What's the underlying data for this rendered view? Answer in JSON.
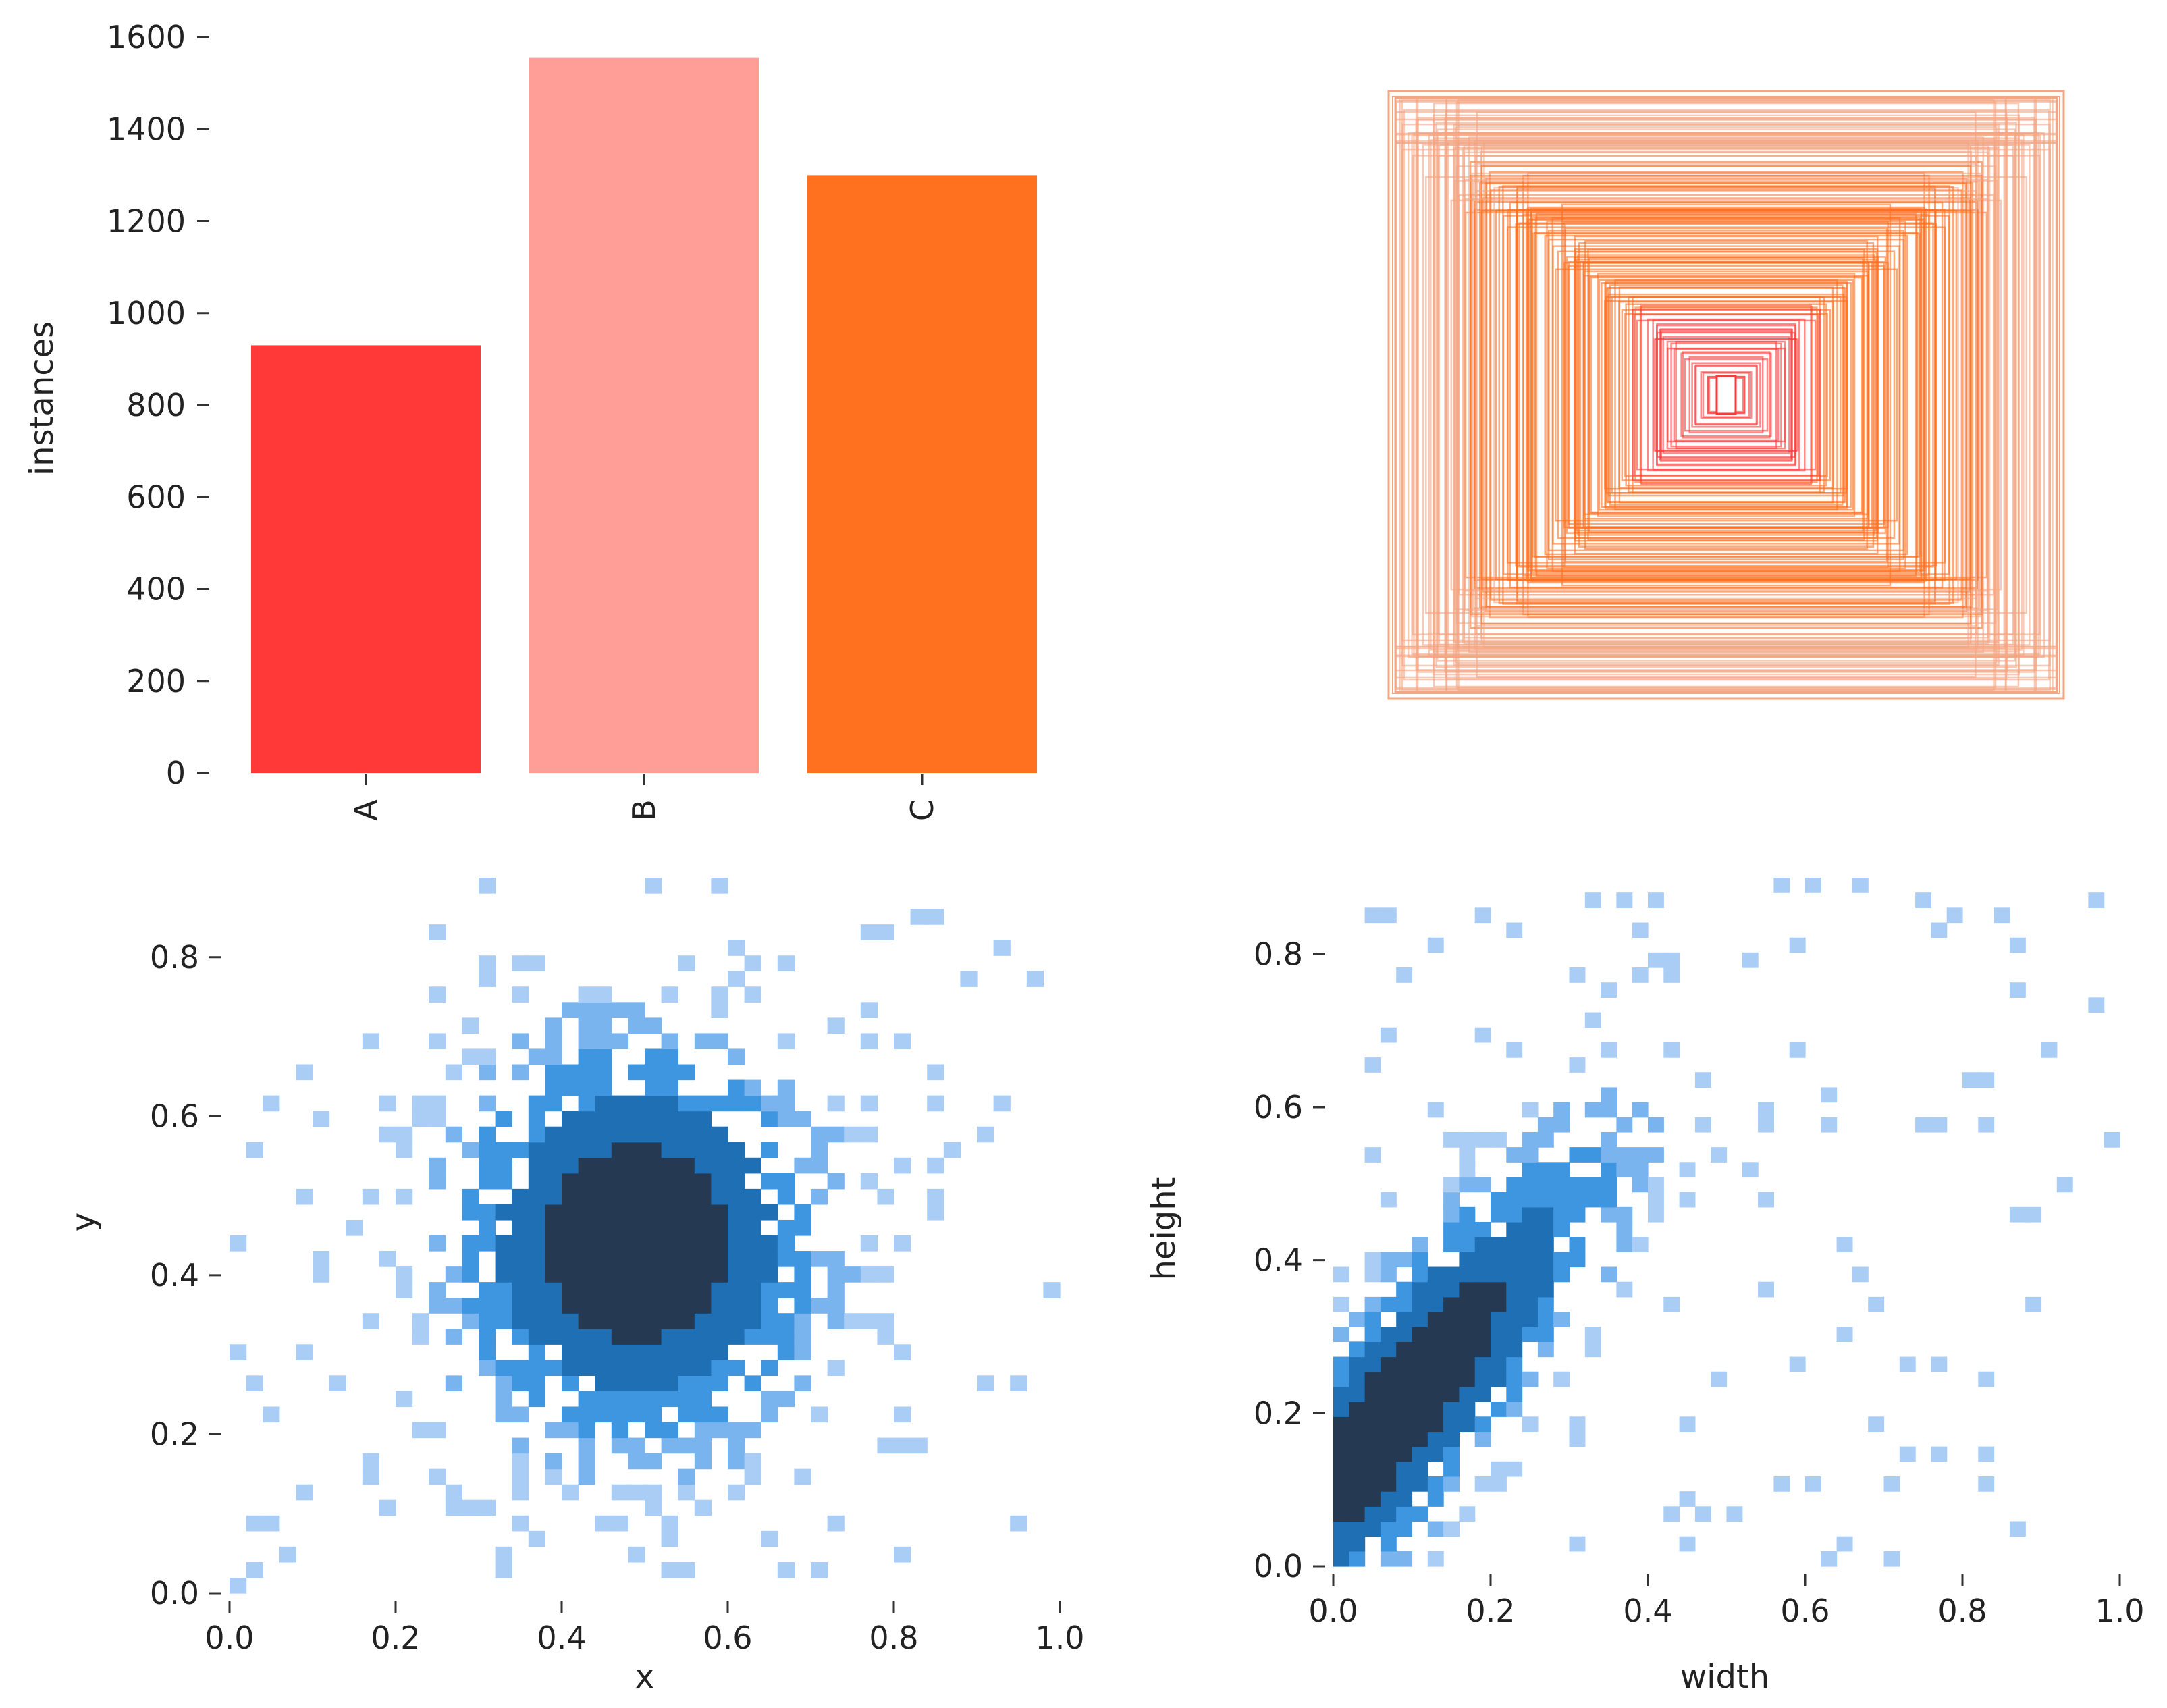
{
  "chart_data": [
    {
      "type": "bar",
      "panel": "top-left",
      "categories": [
        "A",
        "B",
        "C"
      ],
      "values": [
        930,
        1555,
        1300
      ],
      "colors": [
        "#ff3838",
        "#ff9d97",
        "#ff701f"
      ],
      "ylabel": "instances",
      "ylim": [
        0,
        1600
      ],
      "yticks": [
        "0",
        "200",
        "400",
        "600",
        "800",
        "1000",
        "1200",
        "1400",
        "1600"
      ],
      "grid": false
    },
    {
      "type": "overlay",
      "panel": "top-right",
      "description": "normalized label boxes centred in frame",
      "color_outer": "#f4a582",
      "color_mid": "#ff701f",
      "color_inner": "#ff3838"
    },
    {
      "type": "heatmap",
      "panel": "bottom-left",
      "xlabel": "x",
      "ylabel": "y",
      "xlim": [
        0,
        1
      ],
      "ylim": [
        0,
        0.9
      ],
      "xticks": [
        "0.0",
        "0.2",
        "0.4",
        "0.6",
        "0.8",
        "1.0"
      ],
      "yticks": [
        "0.0",
        "0.2",
        "0.4",
        "0.6",
        "0.8"
      ],
      "density_peak": [
        0.49,
        0.44
      ],
      "spread": [
        0.14,
        0.16
      ],
      "color": "#1f77b4"
    },
    {
      "type": "heatmap",
      "panel": "bottom-right",
      "xlabel": "width",
      "ylabel": "height",
      "xlim": [
        0,
        1
      ],
      "ylim": [
        0,
        0.9
      ],
      "xticks": [
        "0.0",
        "0.2",
        "0.4",
        "0.6",
        "0.8",
        "1.0"
      ],
      "yticks": [
        "0.0",
        "0.2",
        "0.4",
        "0.6",
        "0.8"
      ],
      "density_peak": [
        0.08,
        0.2
      ],
      "spread": [
        0.12,
        0.14
      ],
      "color": "#1f77b4"
    }
  ]
}
